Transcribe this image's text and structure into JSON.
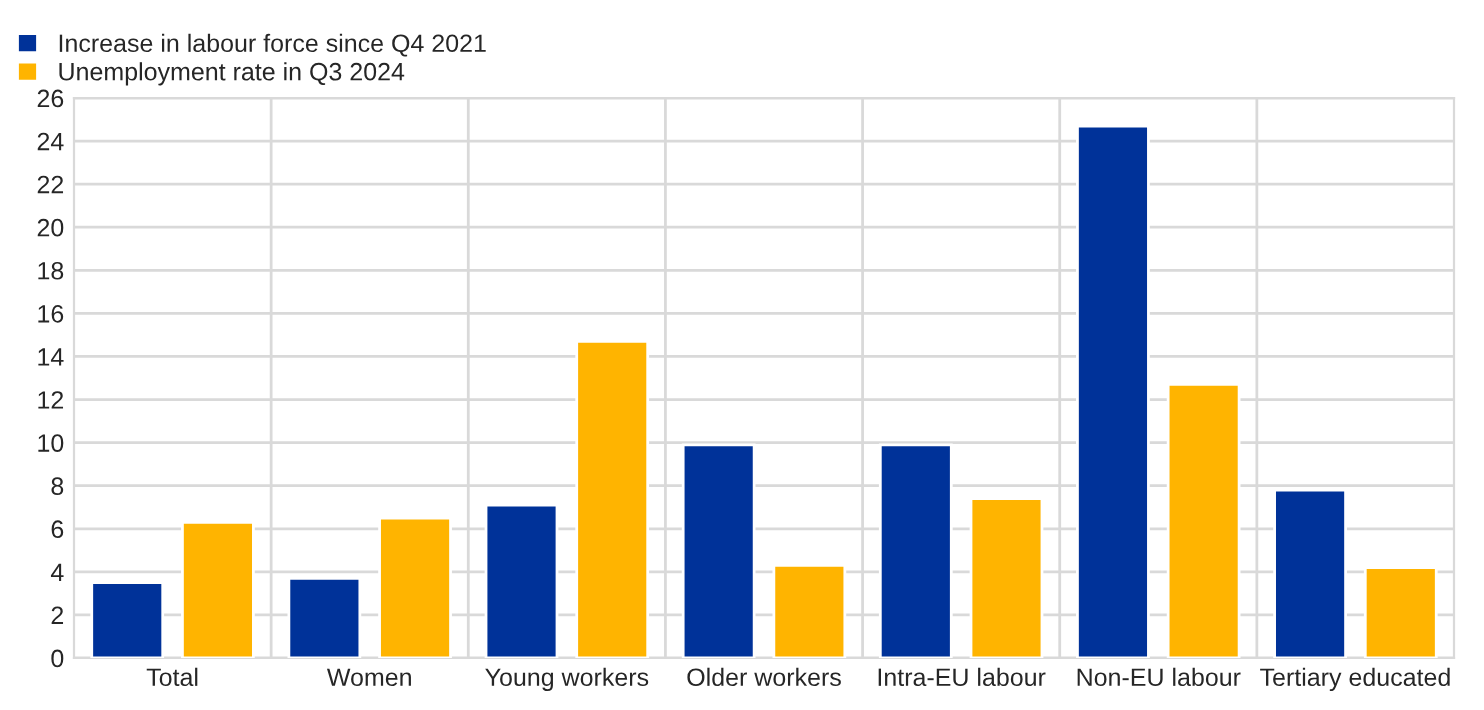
{
  "chart_data": {
    "type": "bar",
    "categories": [
      "Total",
      "Women",
      "Young workers",
      "Older workers",
      "Intra-EU labour",
      "Non-EU labour",
      "Tertiary educated"
    ],
    "series": [
      {
        "name": "Increase in labour force since Q4 2021",
        "color": "#003299",
        "values": [
          3.5,
          3.7,
          7.1,
          9.9,
          9.9,
          24.7,
          7.8
        ]
      },
      {
        "name": "Unemployment rate in Q3 2024",
        "color": "#ffb400",
        "values": [
          6.3,
          6.5,
          14.7,
          4.3,
          7.4,
          12.7,
          4.2
        ]
      }
    ],
    "ylim": [
      0,
      26
    ],
    "yticks": [
      0,
      2,
      4,
      6,
      8,
      10,
      12,
      14,
      16,
      18,
      20,
      22,
      24,
      26
    ],
    "grid": true,
    "legend": "top left"
  }
}
